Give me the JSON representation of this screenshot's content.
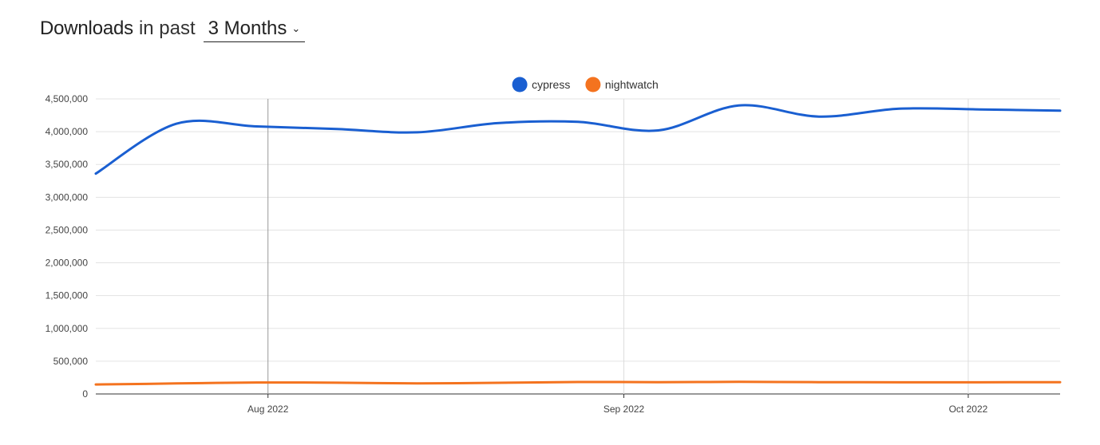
{
  "header": {
    "title": "Downloads",
    "subtitle": "in past",
    "range_value": "3 Months",
    "range_icon": "chevron-down-icon"
  },
  "colors": {
    "cypress": "#1a5fd1",
    "nightwatch": "#f4731f",
    "grid": "#e3e3e3",
    "month_line": "#999999",
    "axis_text": "#444444"
  },
  "chart_data": {
    "type": "line",
    "title": "",
    "xlabel": "",
    "ylabel": "",
    "ylim": [
      0,
      4500000
    ],
    "yticks": [
      0,
      500000,
      1000000,
      1500000,
      2000000,
      2500000,
      3000000,
      3500000,
      4000000,
      4500000
    ],
    "ytick_labels": [
      "0",
      "500,000",
      "1,000,000",
      "1,500,000",
      "2,000,000",
      "2,500,000",
      "3,000,000",
      "3,500,000",
      "4,000,000",
      "4,500,000"
    ],
    "x_range": [
      "2022-07-17",
      "2022-10-09"
    ],
    "x_ticks": [
      {
        "date": "2022-08-01",
        "label": "Aug 2022"
      },
      {
        "date": "2022-09-01",
        "label": "Sep 2022"
      },
      {
        "date": "2022-10-01",
        "label": "Oct 2022"
      }
    ],
    "grid": true,
    "legend_position": "top-center",
    "x": [
      "2022-07-17",
      "2022-07-24",
      "2022-07-31",
      "2022-08-07",
      "2022-08-14",
      "2022-08-21",
      "2022-08-28",
      "2022-09-04",
      "2022-09-11",
      "2022-09-18",
      "2022-09-25",
      "2022-10-02",
      "2022-10-09"
    ],
    "series": [
      {
        "name": "cypress",
        "values": [
          3360000,
          4120000,
          4080000,
          4040000,
          3990000,
          4130000,
          4150000,
          4020000,
          4400000,
          4230000,
          4350000,
          4340000,
          4320000
        ]
      },
      {
        "name": "nightwatch",
        "values": [
          145000,
          160000,
          175000,
          172000,
          162000,
          170000,
          182000,
          180000,
          185000,
          180000,
          178000,
          178000,
          180000
        ]
      }
    ]
  }
}
